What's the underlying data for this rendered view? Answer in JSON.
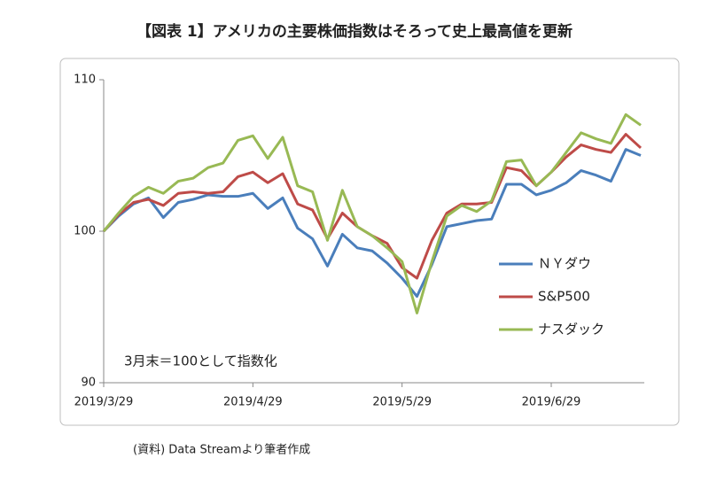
{
  "chart_data": {
    "type": "line",
    "title": "【図表 1】アメリカの主要株価指数はそろって史上最高値を更新",
    "annotation": "3月末＝100として指数化",
    "source": "(資料) Data Streamより筆者作成",
    "categories": [
      "2019/3/29",
      null,
      null,
      null,
      null,
      null,
      null,
      null,
      null,
      null,
      "2019/4/29",
      null,
      null,
      null,
      null,
      null,
      null,
      null,
      null,
      null,
      "2019/5/29",
      null,
      null,
      null,
      null,
      null,
      null,
      null,
      null,
      null,
      "2019/6/29",
      null,
      null,
      null,
      null,
      null,
      null
    ],
    "ylim": [
      90,
      110
    ],
    "yticks": [
      90,
      100,
      110
    ],
    "grid": false,
    "legend": "right",
    "series": [
      {
        "name": "ＮＹダウ",
        "color": "#4a7ebb",
        "values": [
          100,
          101.0,
          101.8,
          102.2,
          100.9,
          101.9,
          102.1,
          102.4,
          102.3,
          102.3,
          102.5,
          101.5,
          102.2,
          100.2,
          99.5,
          97.7,
          99.8,
          98.9,
          98.7,
          97.9,
          96.9,
          95.7,
          97.8,
          100.3,
          100.5,
          100.7,
          100.8,
          103.1,
          103.1,
          102.4,
          102.7,
          103.2,
          104.0,
          103.7,
          103.3,
          105.4,
          105.0
        ]
      },
      {
        "name": "S&P500",
        "color": "#be4b48",
        "values": [
          100,
          101.1,
          101.9,
          102.1,
          101.7,
          102.5,
          102.6,
          102.5,
          102.6,
          103.6,
          103.9,
          103.2,
          103.8,
          101.8,
          101.4,
          99.5,
          101.2,
          100.3,
          99.7,
          99.2,
          97.6,
          96.9,
          99.4,
          101.2,
          101.8,
          101.8,
          101.9,
          104.2,
          104.0,
          103.0,
          103.9,
          104.9,
          105.7,
          105.4,
          105.2,
          106.4,
          105.5
        ]
      },
      {
        "name": "ナスダック",
        "color": "#98b954",
        "values": [
          100,
          101.2,
          102.3,
          102.9,
          102.5,
          103.3,
          103.5,
          104.2,
          104.5,
          106.0,
          106.3,
          104.8,
          106.2,
          103.0,
          102.6,
          99.4,
          102.7,
          100.3,
          99.7,
          98.9,
          98.0,
          94.6,
          98.0,
          101.0,
          101.7,
          101.3,
          102.0,
          104.6,
          104.7,
          103.0,
          103.9,
          105.2,
          106.5,
          106.1,
          105.8,
          107.7,
          107.0
        ]
      }
    ]
  }
}
